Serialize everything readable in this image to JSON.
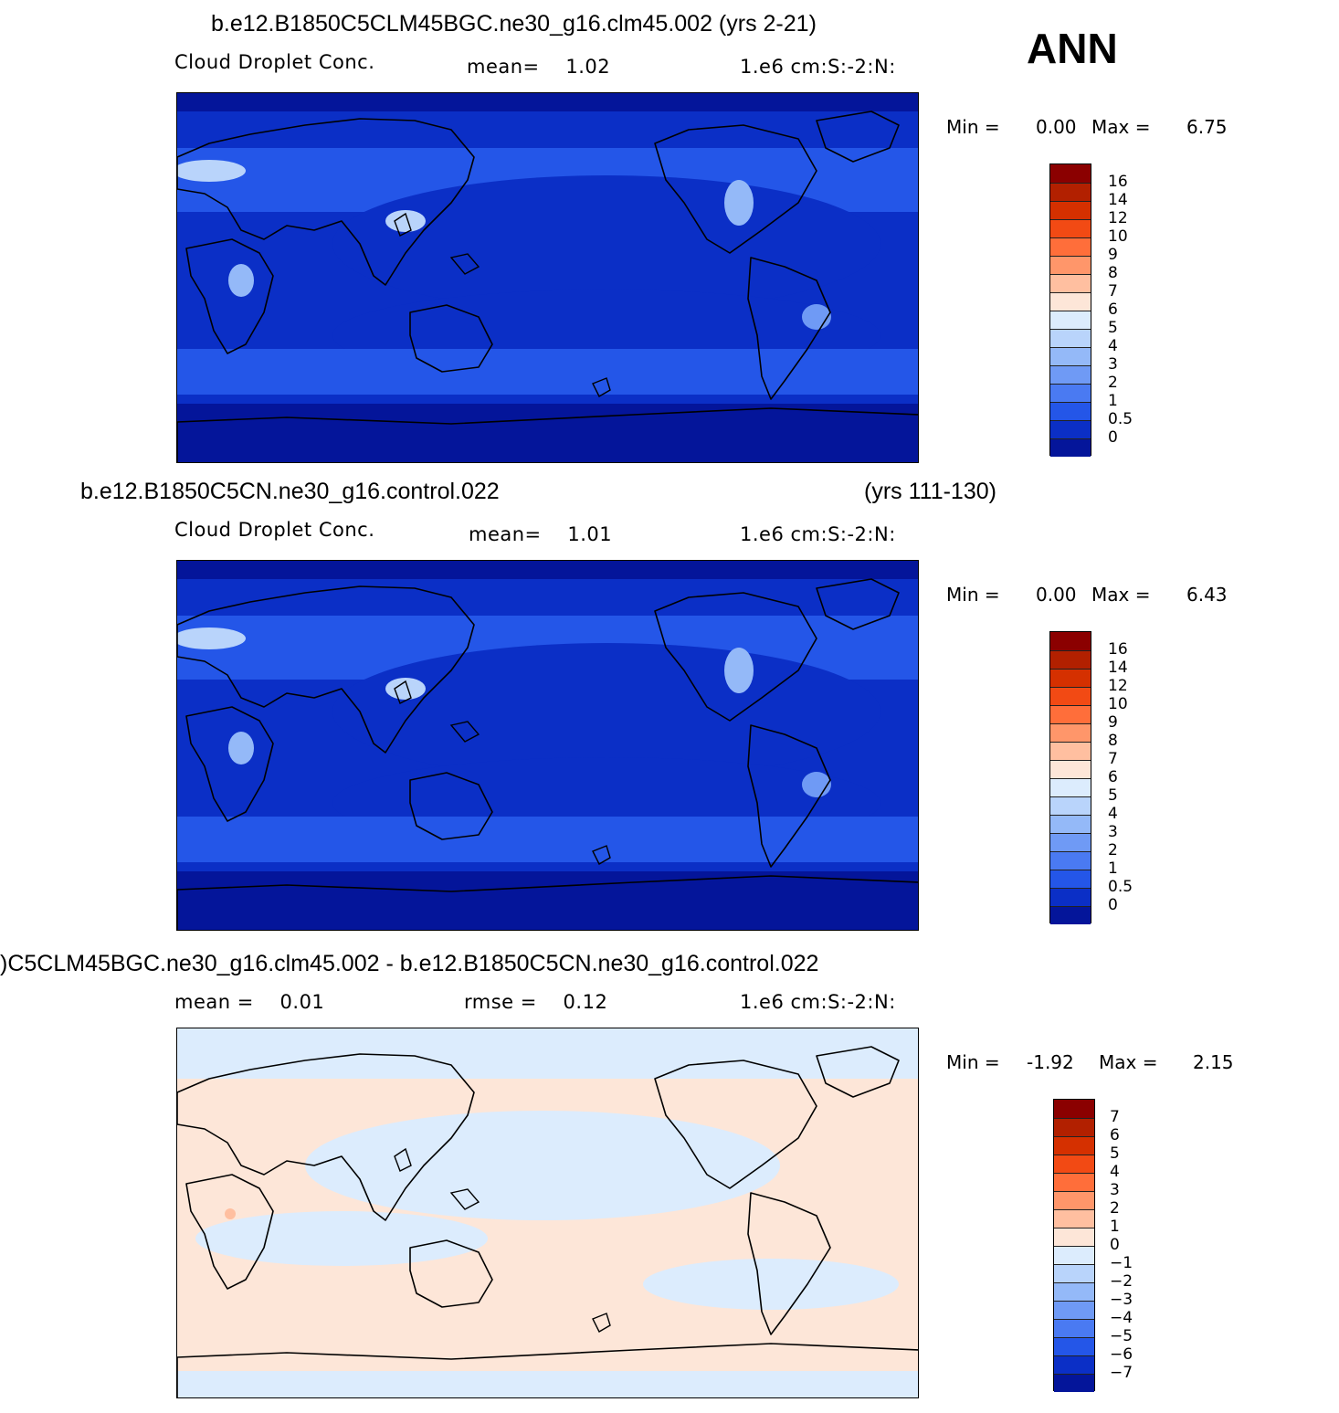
{
  "season": "ANN",
  "panels": [
    {
      "title_left": "b.e12.B1850C5CLM45BGC.ne30_g16.clm45.002 (yrs 2-21)",
      "title_right": "",
      "sub_left": "Cloud Droplet Conc.",
      "sub_mid": "mean=    1.02",
      "sub_right": "1.e6 cm:S:-2:N:",
      "min_label": "Min =",
      "min_value": "0.00",
      "max_label": "Max =",
      "max_value": "6.75",
      "colorbar_labels": [
        "16",
        "14",
        "12",
        "10",
        "9",
        "8",
        "7",
        "6",
        "5",
        "4",
        "3",
        "2",
        "1",
        "0.5",
        "0"
      ],
      "colorbar_colors": [
        "#8b0000",
        "#b22000",
        "#d53000",
        "#f24a14",
        "#ff6e3a",
        "#ff966a",
        "#ffbfa0",
        "#fde6d8",
        "#dcecfd",
        "#b9d4fb",
        "#94b9f8",
        "#6f9af5",
        "#4a7af2",
        "#2456e8",
        "#0b2fc6",
        "#04159a"
      ],
      "map_style": "absolute"
    },
    {
      "title_left": "b.e12.B1850C5CN.ne30_g16.control.022",
      "title_right": "(yrs 111-130)",
      "sub_left": "Cloud Droplet Conc.",
      "sub_mid": "mean=    1.01",
      "sub_right": "1.e6 cm:S:-2:N:",
      "min_label": "Min =",
      "min_value": "0.00",
      "max_label": "Max =",
      "max_value": "6.43",
      "colorbar_labels": [
        "16",
        "14",
        "12",
        "10",
        "9",
        "8",
        "7",
        "6",
        "5",
        "4",
        "3",
        "2",
        "1",
        "0.5",
        "0"
      ],
      "colorbar_colors": [
        "#8b0000",
        "#b22000",
        "#d53000",
        "#f24a14",
        "#ff6e3a",
        "#ff966a",
        "#ffbfa0",
        "#fde6d8",
        "#dcecfd",
        "#b9d4fb",
        "#94b9f8",
        "#6f9af5",
        "#4a7af2",
        "#2456e8",
        "#0b2fc6",
        "#04159a"
      ],
      "map_style": "absolute"
    },
    {
      "title_left": ")C5CLM45BGC.ne30_g16.clm45.002 - b.e12.B1850C5CN.ne30_g16.control.022",
      "title_right": "",
      "sub_left": "mean =    0.01",
      "sub_mid": "rmse =    0.12",
      "sub_right": "1.e6 cm:S:-2:N:",
      "min_label": "Min =",
      "min_value": "-1.92",
      "max_label": "Max =",
      "max_value": "2.15",
      "colorbar_labels": [
        "7",
        "6",
        "5",
        "4",
        "3",
        "2",
        "1",
        "0",
        "-1",
        "-2",
        "-3",
        "-4",
        "-5",
        "-6",
        "-7"
      ],
      "colorbar_colors": [
        "#8b0000",
        "#b22000",
        "#d53000",
        "#f24a14",
        "#ff6e3a",
        "#ff966a",
        "#ffbfa0",
        "#fde6d8",
        "#dcecfd",
        "#b9d4fb",
        "#94b9f8",
        "#6f9af5",
        "#4a7af2",
        "#2456e8",
        "#0b2fc6",
        "#04159a"
      ],
      "map_style": "difference"
    }
  ]
}
